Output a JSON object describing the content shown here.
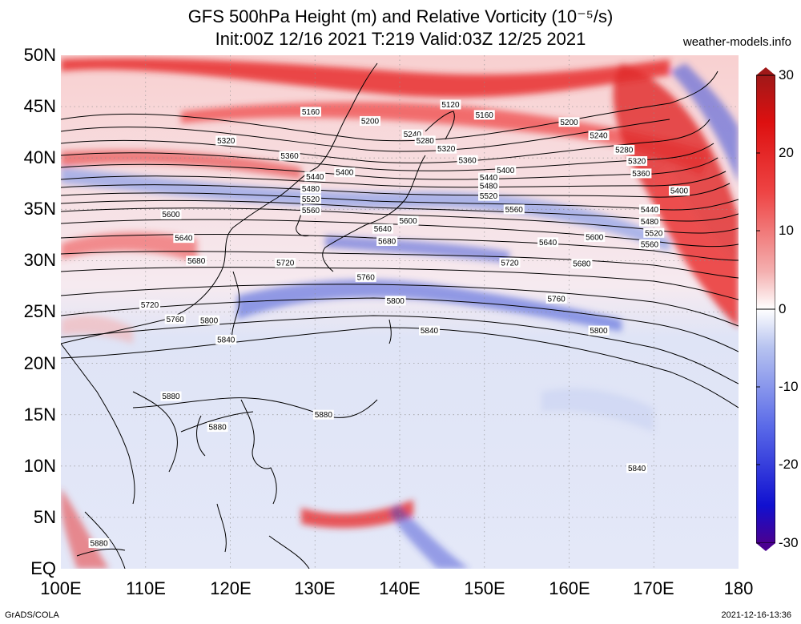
{
  "title": {
    "line1": "GFS 500hPa Height (m) and Relative Vorticity (10⁻⁵/s)",
    "line2": "Init:00Z 12/16 2021 T:219 Valid:03Z 12/25 2021"
  },
  "site": "weather-models.info",
  "footer": {
    "left": "GrADS/COLA",
    "right": "2021-12-16-13:36"
  },
  "axes": {
    "lat_labels": [
      "50N",
      "45N",
      "40N",
      "35N",
      "30N",
      "25N",
      "20N",
      "15N",
      "10N",
      "5N",
      "EQ"
    ],
    "lon_labels": [
      "100E",
      "110E",
      "120E",
      "130E",
      "140E",
      "150E",
      "160E",
      "170E",
      "180"
    ]
  },
  "colorbar": {
    "labels": [
      "30",
      "20",
      "10",
      "0",
      "-10",
      "-20",
      "-30"
    ],
    "colors": [
      "#4a0090",
      "#1010d0",
      "#5a6ae8",
      "#b8c4f0",
      "#ffffff",
      "#f4b0b0",
      "#ee4444",
      "#dd1010",
      "#a01818"
    ]
  },
  "contour_labels": [
    {
      "text": "5120",
      "lon": 146,
      "lat": 45.2
    },
    {
      "text": "5160",
      "lon": 129.5,
      "lat": 44.5
    },
    {
      "text": "5160",
      "lon": 150,
      "lat": 44.2
    },
    {
      "text": "5200",
      "lon": 136.5,
      "lat": 43.6
    },
    {
      "text": "5200",
      "lon": 160,
      "lat": 43.5
    },
    {
      "text": "5240",
      "lon": 141.5,
      "lat": 42.3
    },
    {
      "text": "5240",
      "lon": 163.5,
      "lat": 42.2
    },
    {
      "text": "5280",
      "lon": 143,
      "lat": 41.7
    },
    {
      "text": "5280",
      "lon": 166.5,
      "lat": 40.8
    },
    {
      "text": "5320",
      "lon": 119.5,
      "lat": 41.7
    },
    {
      "text": "5320",
      "lon": 145.5,
      "lat": 40.9
    },
    {
      "text": "5320",
      "lon": 168,
      "lat": 39.7
    },
    {
      "text": "5360",
      "lon": 127,
      "lat": 40.2
    },
    {
      "text": "5360",
      "lon": 148,
      "lat": 39.8
    },
    {
      "text": "5360",
      "lon": 168.5,
      "lat": 38.5
    },
    {
      "text": "5400",
      "lon": 133.5,
      "lat": 38.6
    },
    {
      "text": "5400",
      "lon": 152.5,
      "lat": 38.8
    },
    {
      "text": "5400",
      "lon": 173,
      "lat": 36.8
    },
    {
      "text": "5440",
      "lon": 130,
      "lat": 38.2
    },
    {
      "text": "5440",
      "lon": 150.5,
      "lat": 38.1
    },
    {
      "text": "5440",
      "lon": 169.5,
      "lat": 35.0
    },
    {
      "text": "5480",
      "lon": 129.5,
      "lat": 37.0
    },
    {
      "text": "5480",
      "lon": 150.5,
      "lat": 37.3
    },
    {
      "text": "5480",
      "lon": 169.5,
      "lat": 33.8
    },
    {
      "text": "5520",
      "lon": 129.5,
      "lat": 36.0
    },
    {
      "text": "5520",
      "lon": 150.5,
      "lat": 36.3
    },
    {
      "text": "5520",
      "lon": 170,
      "lat": 32.7
    },
    {
      "text": "5560",
      "lon": 129.5,
      "lat": 34.9
    },
    {
      "text": "5560",
      "lon": 153.5,
      "lat": 35.0
    },
    {
      "text": "5560",
      "lon": 169.5,
      "lat": 31.6
    },
    {
      "text": "5600",
      "lon": 113,
      "lat": 34.5
    },
    {
      "text": "5600",
      "lon": 141,
      "lat": 33.9
    },
    {
      "text": "5600",
      "lon": 163,
      "lat": 32.3
    },
    {
      "text": "5640",
      "lon": 114.5,
      "lat": 32.2
    },
    {
      "text": "5640",
      "lon": 138,
      "lat": 33.1
    },
    {
      "text": "5640",
      "lon": 157.5,
      "lat": 31.8
    },
    {
      "text": "5680",
      "lon": 116,
      "lat": 30.0
    },
    {
      "text": "5680",
      "lon": 138.5,
      "lat": 31.9
    },
    {
      "text": "5680",
      "lon": 161.5,
      "lat": 29.7
    },
    {
      "text": "5720",
      "lon": 110.5,
      "lat": 25.7
    },
    {
      "text": "5720",
      "lon": 126.5,
      "lat": 29.8
    },
    {
      "text": "5720",
      "lon": 153,
      "lat": 29.8
    },
    {
      "text": "5760",
      "lon": 113.5,
      "lat": 24.3
    },
    {
      "text": "5760",
      "lon": 136,
      "lat": 28.4
    },
    {
      "text": "5760",
      "lon": 158.5,
      "lat": 26.3
    },
    {
      "text": "5800",
      "lon": 117.5,
      "lat": 24.2
    },
    {
      "text": "5800",
      "lon": 139.5,
      "lat": 26.1
    },
    {
      "text": "5800",
      "lon": 163.5,
      "lat": 23.2
    },
    {
      "text": "5840",
      "lon": 119.5,
      "lat": 22.3
    },
    {
      "text": "5840",
      "lon": 143.5,
      "lat": 23.2
    },
    {
      "text": "5840",
      "lon": 168,
      "lat": 9.8
    },
    {
      "text": "5880",
      "lon": 113,
      "lat": 16.8
    },
    {
      "text": "5880",
      "lon": 118.5,
      "lat": 13.8
    },
    {
      "text": "5880",
      "lon": 131,
      "lat": 15.0
    },
    {
      "text": "5880",
      "lon": 104.5,
      "lat": 2.5
    }
  ]
}
